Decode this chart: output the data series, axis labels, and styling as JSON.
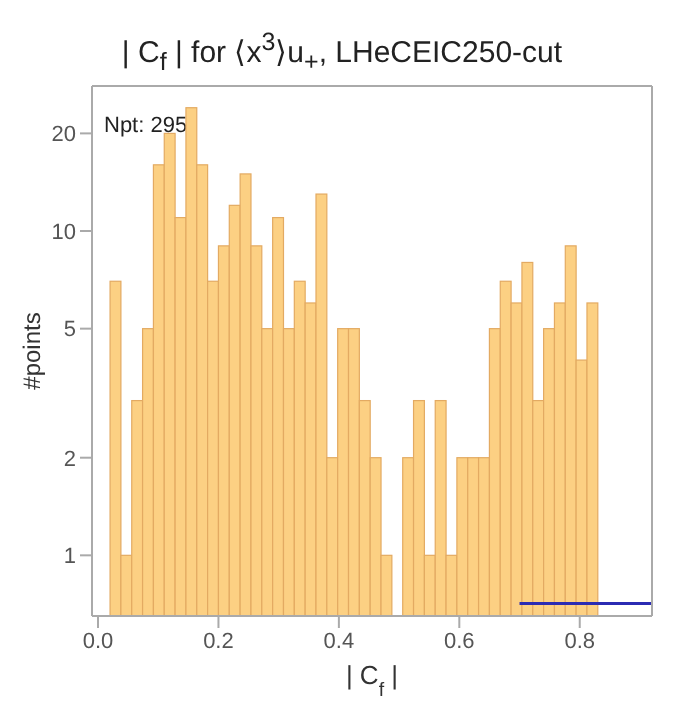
{
  "chart_data": {
    "type": "histogram",
    "title": "| C$_{f}$ | for ⟨x$^{3}$⟩u$_{+}$, LHeCEIC250-cut",
    "xlabel": "| C$_{f}$ |",
    "ylabel": "#points",
    "annotations": [
      "Npt: 295"
    ],
    "bins": [
      0.02,
      0.038,
      0.056,
      0.074,
      0.092,
      0.11,
      0.128,
      0.146,
      0.164,
      0.182,
      0.2,
      0.218,
      0.236,
      0.254,
      0.272,
      0.29,
      0.308,
      0.326,
      0.344,
      0.362,
      0.38,
      0.398,
      0.416,
      0.434,
      0.452,
      0.47,
      0.488,
      0.506,
      0.524,
      0.542,
      0.56,
      0.578,
      0.596,
      0.614,
      0.632,
      0.65,
      0.668,
      0.686,
      0.704,
      0.722,
      0.74,
      0.758,
      0.776,
      0.794,
      0.812,
      0.83
    ],
    "values": [
      7,
      1,
      3,
      5,
      16,
      20,
      11,
      24,
      16,
      7,
      9,
      12,
      15,
      9,
      5,
      11,
      5,
      7,
      6,
      13,
      2,
      5,
      5,
      3,
      2,
      1,
      null,
      2,
      3,
      1,
      3,
      1,
      2,
      2,
      2,
      5,
      7,
      6,
      8,
      3,
      5,
      6,
      9,
      4,
      6
    ],
    "color": "#fcd083",
    "series": [
      {
        "type": "line",
        "color": "#2b2bb3",
        "x": [
          0.7,
          0.92
        ],
        "values": [
          0.71,
          0.71
        ]
      }
    ],
    "xlim": [
      -0.01,
      0.92
    ],
    "xticks": [
      {
        "value": 0,
        "label": "0.0"
      },
      {
        "value": 0.2,
        "label": "0.2"
      },
      {
        "value": 0.4,
        "label": "0.4"
      },
      {
        "value": 0.6,
        "label": "0.6"
      },
      {
        "value": 0.8,
        "label": "0.8"
      }
    ],
    "ylim": [
      0.65,
      28
    ],
    "yticks": [
      1,
      2,
      5,
      10,
      20
    ],
    "log": "y"
  }
}
